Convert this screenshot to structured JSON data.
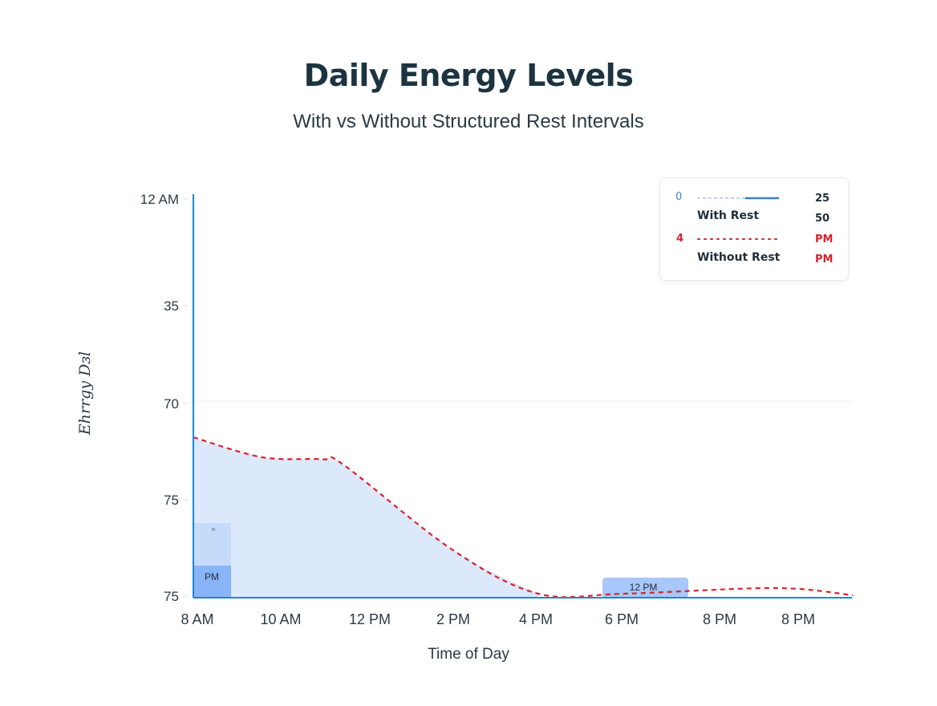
{
  "chart_data": {
    "type": "area",
    "title": "Daily Energy Levels",
    "subtitle": "With vs Without Structured Rest Intervals",
    "xlabel": "Time of Day",
    "ylabel": "Ehrrgy Dɜl",
    "x_tick_labels": [
      "8 AM",
      "10 AM",
      "12 PM",
      "2 PM",
      "4 PM",
      "6 PM",
      "8 PM",
      "8 PM"
    ],
    "y_tick_labels_top_to_bottom": [
      "12 AM",
      "35",
      "70",
      "75",
      "75"
    ],
    "grid": "horizontal at 70",
    "legend_placement": "top-right",
    "legend": {
      "rows": [
        {
          "left": "0",
          "label": "With Rest",
          "right_top": "25",
          "right_bottom": "50",
          "color": "#3b7fe0",
          "style": "solid-dashed"
        },
        {
          "left": "4",
          "label": "Without Rest",
          "right_top": "PM",
          "right_bottom": "PM",
          "color": "#d9232a",
          "style": "dotted"
        }
      ]
    },
    "series": [
      {
        "name": "Without Rest",
        "color": "#d9232a",
        "x_hours": [
          8,
          9.6,
          11,
          11.5,
          14,
          16,
          18,
          21.5,
          23.3
        ],
        "values": [
          40,
          35,
          34.5,
          33,
          12,
          1,
          1,
          2.4,
          0.6
        ]
      }
    ],
    "annotations": [
      {
        "label": "PM",
        "sub_label": "н",
        "color": "#8ab4f8"
      },
      {
        "label": "12 PM",
        "color": "#a8c7fa"
      }
    ],
    "colors": {
      "axis": "#1a87d8",
      "fill": "#dce8fb",
      "title": "#1c3440"
    }
  }
}
